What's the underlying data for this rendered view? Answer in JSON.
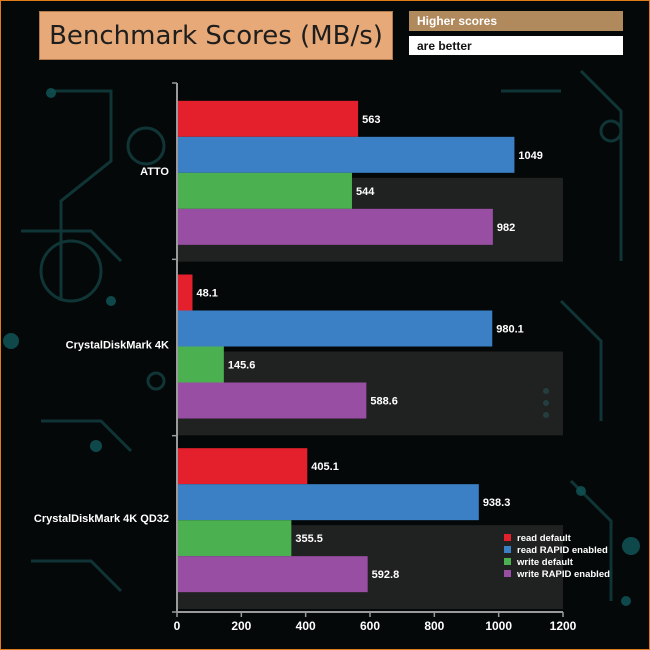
{
  "header": {
    "title": "Benchmark Scores (MB/s)",
    "note_line1": "Higher scores",
    "note_line2": "are better"
  },
  "chart_data": {
    "type": "bar",
    "orientation": "horizontal",
    "title": "Benchmark Scores (MB/s)",
    "categories": [
      "ATTO",
      "CrystalDiskMark 4K",
      "CrystalDiskMark 4K QD32"
    ],
    "series": [
      {
        "name": "read default",
        "color": "#e3202b",
        "values": [
          563,
          48.1,
          405.1
        ],
        "labels": [
          "563",
          "48.1",
          "405.1"
        ]
      },
      {
        "name": "read RAPID enabled",
        "color": "#3b7fc4",
        "values": [
          1049,
          980.1,
          938.3
        ],
        "labels": [
          "1049",
          "980.1",
          "938.3"
        ]
      },
      {
        "name": "write default",
        "color": "#4bb04f",
        "values": [
          544,
          145.6,
          355.5
        ],
        "labels": [
          "544",
          "145.6",
          "355.5"
        ]
      },
      {
        "name": "write RAPID enabled",
        "color": "#984ea3",
        "values": [
          982,
          588.6,
          592.8
        ],
        "labels": [
          "982",
          "588.6",
          "592.8"
        ]
      }
    ],
    "xlim": [
      0,
      1200
    ],
    "xticks": [
      "0",
      "200",
      "400",
      "600",
      "800",
      "1000",
      "1200"
    ],
    "xlabel": "",
    "ylabel": "",
    "legend_position": "bottom-right",
    "grid": false
  }
}
